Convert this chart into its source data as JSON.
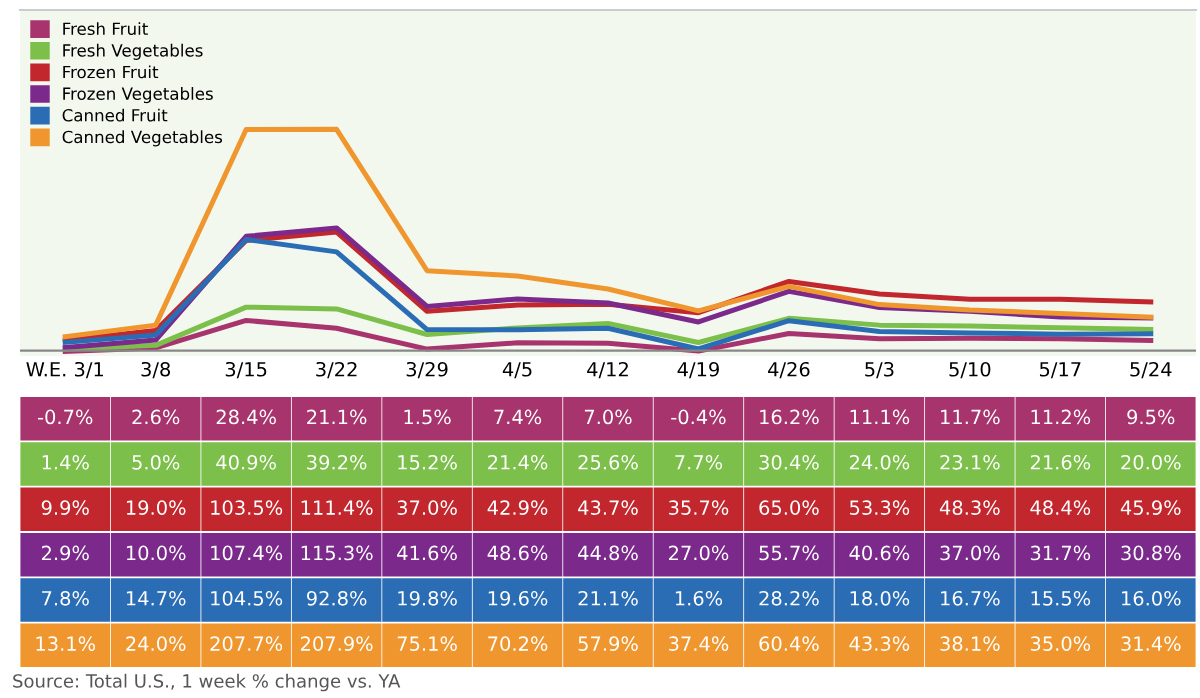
{
  "chart_data": {
    "type": "line",
    "categories": [
      "W.E. 3/1",
      "3/8",
      "3/15",
      "3/22",
      "3/29",
      "4/5",
      "4/12",
      "4/19",
      "4/26",
      "5/3",
      "5/10",
      "5/17",
      "5/24"
    ],
    "ylim": [
      -5,
      320
    ],
    "grid": false,
    "legend": "top left",
    "marker": "none",
    "line_style": "solid",
    "tick_labels": "x",
    "series": [
      {
        "name": "Fresh Fruit",
        "color": "#a8346e",
        "values": [
          -0.7,
          2.6,
          28.4,
          21.1,
          1.5,
          7.4,
          7.0,
          -0.4,
          16.2,
          11.1,
          11.7,
          11.2,
          9.5
        ],
        "value_labels": [
          "-0.7%",
          "2.6%",
          "28.4%",
          "21.1%",
          "1.5%",
          "7.4%",
          "7.0%",
          "-0.4%",
          "16.2%",
          "11.1%",
          "11.7%",
          "11.2%",
          "9.5%"
        ]
      },
      {
        "name": "Fresh Vegetables",
        "color": "#7cbf4a",
        "values": [
          1.4,
          5.0,
          40.9,
          39.2,
          15.2,
          21.4,
          25.6,
          7.7,
          30.4,
          24.0,
          23.1,
          21.6,
          20.0
        ],
        "value_labels": [
          "1.4%",
          "5.0%",
          "40.9%",
          "39.2%",
          "15.2%",
          "21.4%",
          "25.6%",
          "7.7%",
          "30.4%",
          "24.0%",
          "23.1%",
          "21.6%",
          "20.0%"
        ]
      },
      {
        "name": "Frozen Fruit",
        "color": "#c1272d",
        "values": [
          9.9,
          19.0,
          103.5,
          111.4,
          37.0,
          42.9,
          43.7,
          35.7,
          65.0,
          53.3,
          48.3,
          48.4,
          45.9
        ],
        "value_labels": [
          "9.9%",
          "19.0%",
          "103.5%",
          "111.4%",
          "37.0%",
          "42.9%",
          "43.7%",
          "35.7%",
          "65.0%",
          "53.3%",
          "48.3%",
          "48.4%",
          "45.9%"
        ]
      },
      {
        "name": "Frozen Vegetables",
        "color": "#7b2a8c",
        "values": [
          2.9,
          10.0,
          107.4,
          115.3,
          41.6,
          48.6,
          44.8,
          27.0,
          55.7,
          40.6,
          37.0,
          31.7,
          30.8
        ],
        "value_labels": [
          "2.9%",
          "10.0%",
          "107.4%",
          "115.3%",
          "41.6%",
          "48.6%",
          "44.8%",
          "27.0%",
          "55.7%",
          "40.6%",
          "37.0%",
          "31.7%",
          "30.8%"
        ]
      },
      {
        "name": "Canned Fruit",
        "color": "#2a6db5",
        "values": [
          7.8,
          14.7,
          104.5,
          92.8,
          19.8,
          19.6,
          21.1,
          1.6,
          28.2,
          18.0,
          16.7,
          15.5,
          16.0
        ],
        "value_labels": [
          "7.8%",
          "14.7%",
          "104.5%",
          "92.8%",
          "19.8%",
          "19.6%",
          "21.1%",
          "1.6%",
          "28.2%",
          "18.0%",
          "16.7%",
          "15.5%",
          "16.0%"
        ]
      },
      {
        "name": "Canned Vegetables",
        "color": "#f0962e",
        "values": [
          13.1,
          24.0,
          207.7,
          207.9,
          75.1,
          70.2,
          57.9,
          37.4,
          60.4,
          43.3,
          38.1,
          35.0,
          31.4
        ],
        "value_labels": [
          "13.1%",
          "24.0%",
          "207.7%",
          "207.9%",
          "75.1%",
          "70.2%",
          "57.9%",
          "37.4%",
          "60.4%",
          "43.3%",
          "38.1%",
          "35.0%",
          "31.4%"
        ]
      }
    ],
    "annotations": [
      "Source: Total U.S., 1 week % change vs. YA"
    ]
  }
}
